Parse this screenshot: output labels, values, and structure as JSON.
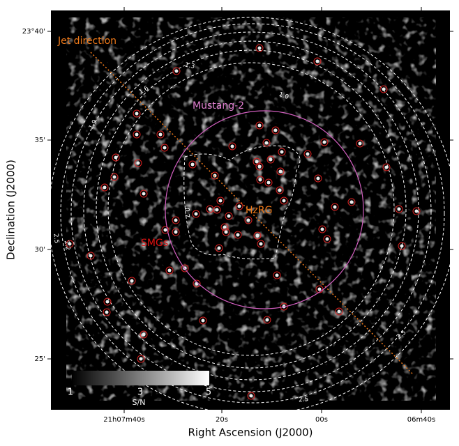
{
  "axes": {
    "x_label": "Right Ascension (J2000)",
    "y_label": "Declination (J2000)",
    "x_ticks": [
      "21h07m40s",
      "20s",
      "00s",
      "06m40s"
    ],
    "y_ticks": [
      "23°40'",
      "35'",
      "30'",
      "25'"
    ]
  },
  "annotations": {
    "jet": "Jet direction",
    "mustang": "Mustang-2",
    "hzrg": "HzRG",
    "smgs": "SMGs"
  },
  "contour_labels": [
    "1.3",
    "1.6",
    "1.0",
    "1.9",
    "2.2",
    "2.5",
    "2.5",
    "2.5",
    "0.7"
  ],
  "colorbar": {
    "label": "S/N",
    "ticks": [
      "1",
      "3",
      "5"
    ]
  }
}
